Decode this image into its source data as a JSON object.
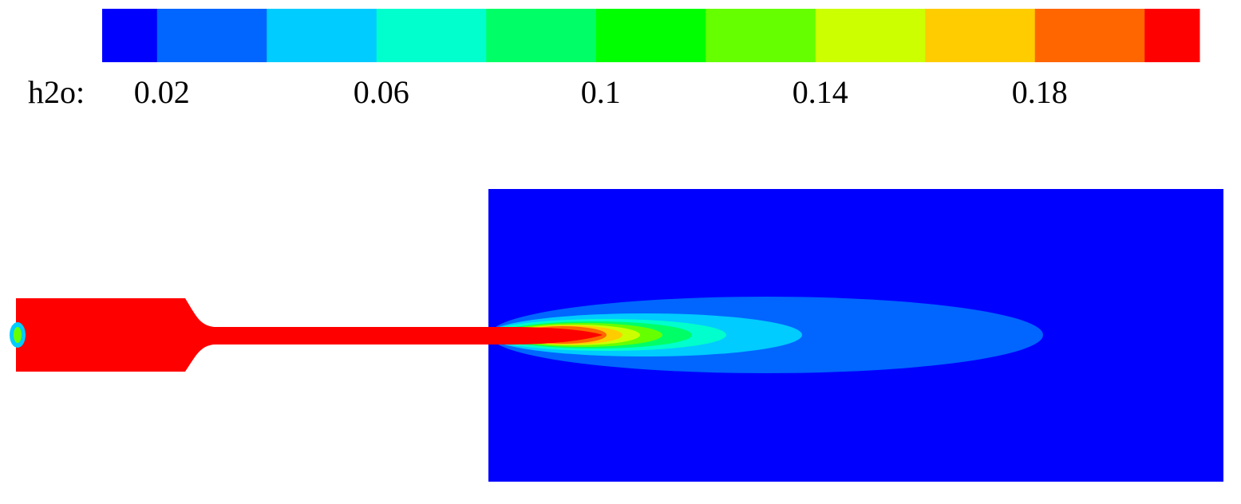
{
  "colorbar": {
    "label": "h2o:",
    "range": [
      0.01,
      0.21
    ],
    "ticks": [
      0.02,
      0.06,
      0.1,
      0.14,
      0.18
    ],
    "colors": [
      "#0000ff",
      "#0066ff",
      "#00ccff",
      "#00ffcc",
      "#00ff66",
      "#00ff00",
      "#66ff00",
      "#ccff00",
      "#ffcc00",
      "#ff6600",
      "#ff0000"
    ]
  }
}
